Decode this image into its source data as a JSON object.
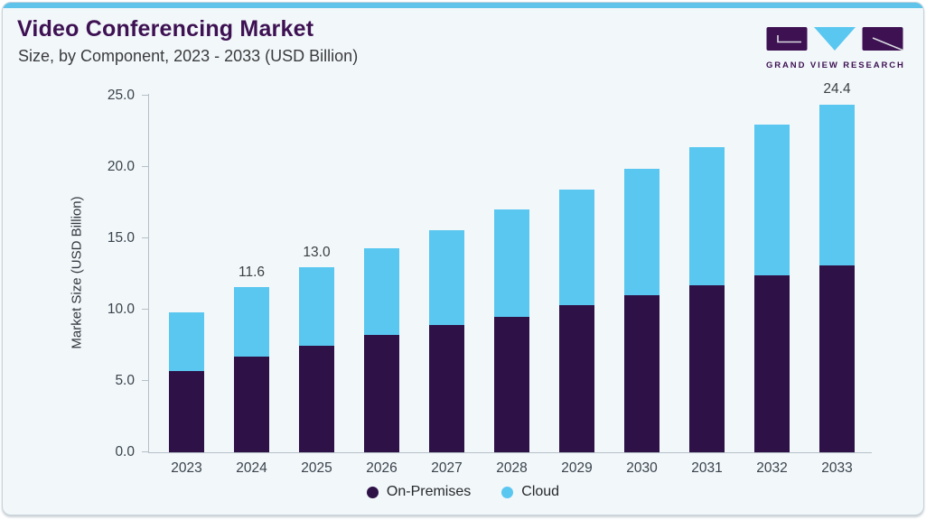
{
  "header": {
    "title": "Video Conferencing Market",
    "subtitle": "Size, by Component, 2023 - 2033 (USD Billion)"
  },
  "logo": {
    "text": "GRAND VIEW RESEARCH"
  },
  "colors": {
    "brand_purple": "#3d1152",
    "accent_blue": "#5fc3ea",
    "on_premises": "#2e1247",
    "cloud": "#5ac7f0",
    "logo_line": "#d8dadf",
    "card_bg": "#f2f7fa",
    "axis": "#b6c0c8"
  },
  "chart_data": {
    "type": "bar",
    "stacked": true,
    "title": "Video Conferencing Market",
    "subtitle": "Size, by Component, 2023 - 2033 (USD Billion)",
    "xlabel": "",
    "ylabel": "Market Size (USD Billion)",
    "ylim": [
      0,
      25
    ],
    "yticks": [
      "0.0",
      "5.0",
      "10.0",
      "15.0",
      "20.0",
      "25.0"
    ],
    "grid": false,
    "legend_position": "bottom",
    "categories": [
      "2023",
      "2024",
      "2025",
      "2026",
      "2027",
      "2028",
      "2029",
      "2030",
      "2031",
      "2032",
      "2033"
    ],
    "series": [
      {
        "name": "On-Premises",
        "color": "#2e1247",
        "values": [
          5.7,
          6.7,
          7.5,
          8.2,
          8.9,
          9.5,
          10.3,
          11.0,
          11.7,
          12.4,
          13.1
        ]
      },
      {
        "name": "Cloud",
        "color": "#5ac7f0",
        "values": [
          4.1,
          4.9,
          5.5,
          6.1,
          6.7,
          7.5,
          8.1,
          8.9,
          9.7,
          10.6,
          11.3
        ]
      }
    ],
    "totals": [
      9.8,
      11.6,
      13.0,
      14.3,
      15.6,
      17.0,
      18.4,
      19.9,
      21.4,
      23.0,
      24.4
    ],
    "total_labels": [
      "",
      "11.6",
      "13.0",
      "",
      "",
      "",
      "",
      "",
      "",
      "",
      "24.4"
    ]
  }
}
